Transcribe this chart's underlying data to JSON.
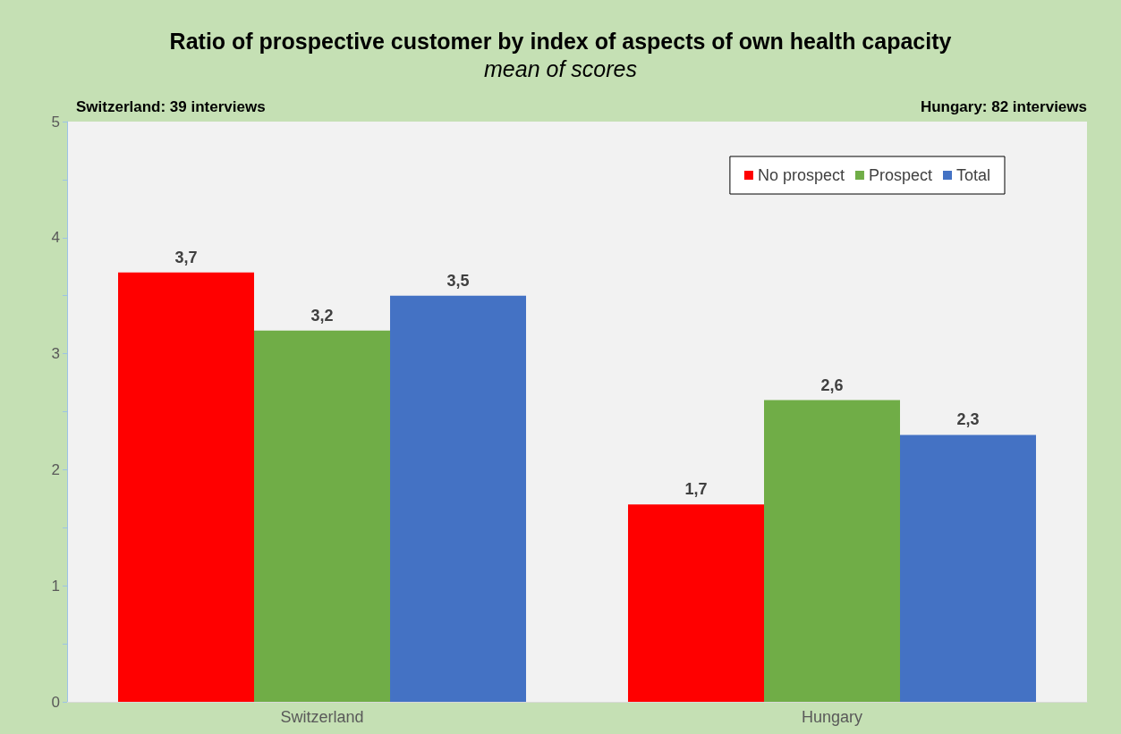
{
  "chart_data": {
    "type": "bar",
    "title": "Ratio of prospective customer by index of aspects of own health capacity",
    "subtitle": "mean of scores",
    "annotations": [
      "Switzerland: 39 interviews",
      "Hungary: 82 interviews"
    ],
    "categories": [
      "Switzerland",
      "Hungary"
    ],
    "series": [
      {
        "name": "No prospect",
        "color": "#ff0000",
        "values": [
          3.7,
          1.7
        ],
        "value_labels": [
          "3,7",
          "1,7"
        ]
      },
      {
        "name": "Prospect",
        "color": "#70ad47",
        "values": [
          3.2,
          2.6
        ],
        "value_labels": [
          "3,2",
          "2,6"
        ]
      },
      {
        "name": "Total",
        "color": "#4472c4",
        "values": [
          3.5,
          2.3
        ],
        "value_labels": [
          "3,5",
          "2,3"
        ]
      }
    ],
    "ylim": [
      0,
      5
    ],
    "yticks": [
      0,
      {
        "value": 0.5,
        "label": null
      },
      1,
      {
        "value": 1.5,
        "label": null
      },
      2,
      {
        "value": 2.5,
        "label": null
      },
      3,
      {
        "value": 3.5,
        "label": null
      },
      4,
      {
        "value": 4.5,
        "label": null
      },
      5
    ],
    "grid": false,
    "legend": "top right"
  }
}
